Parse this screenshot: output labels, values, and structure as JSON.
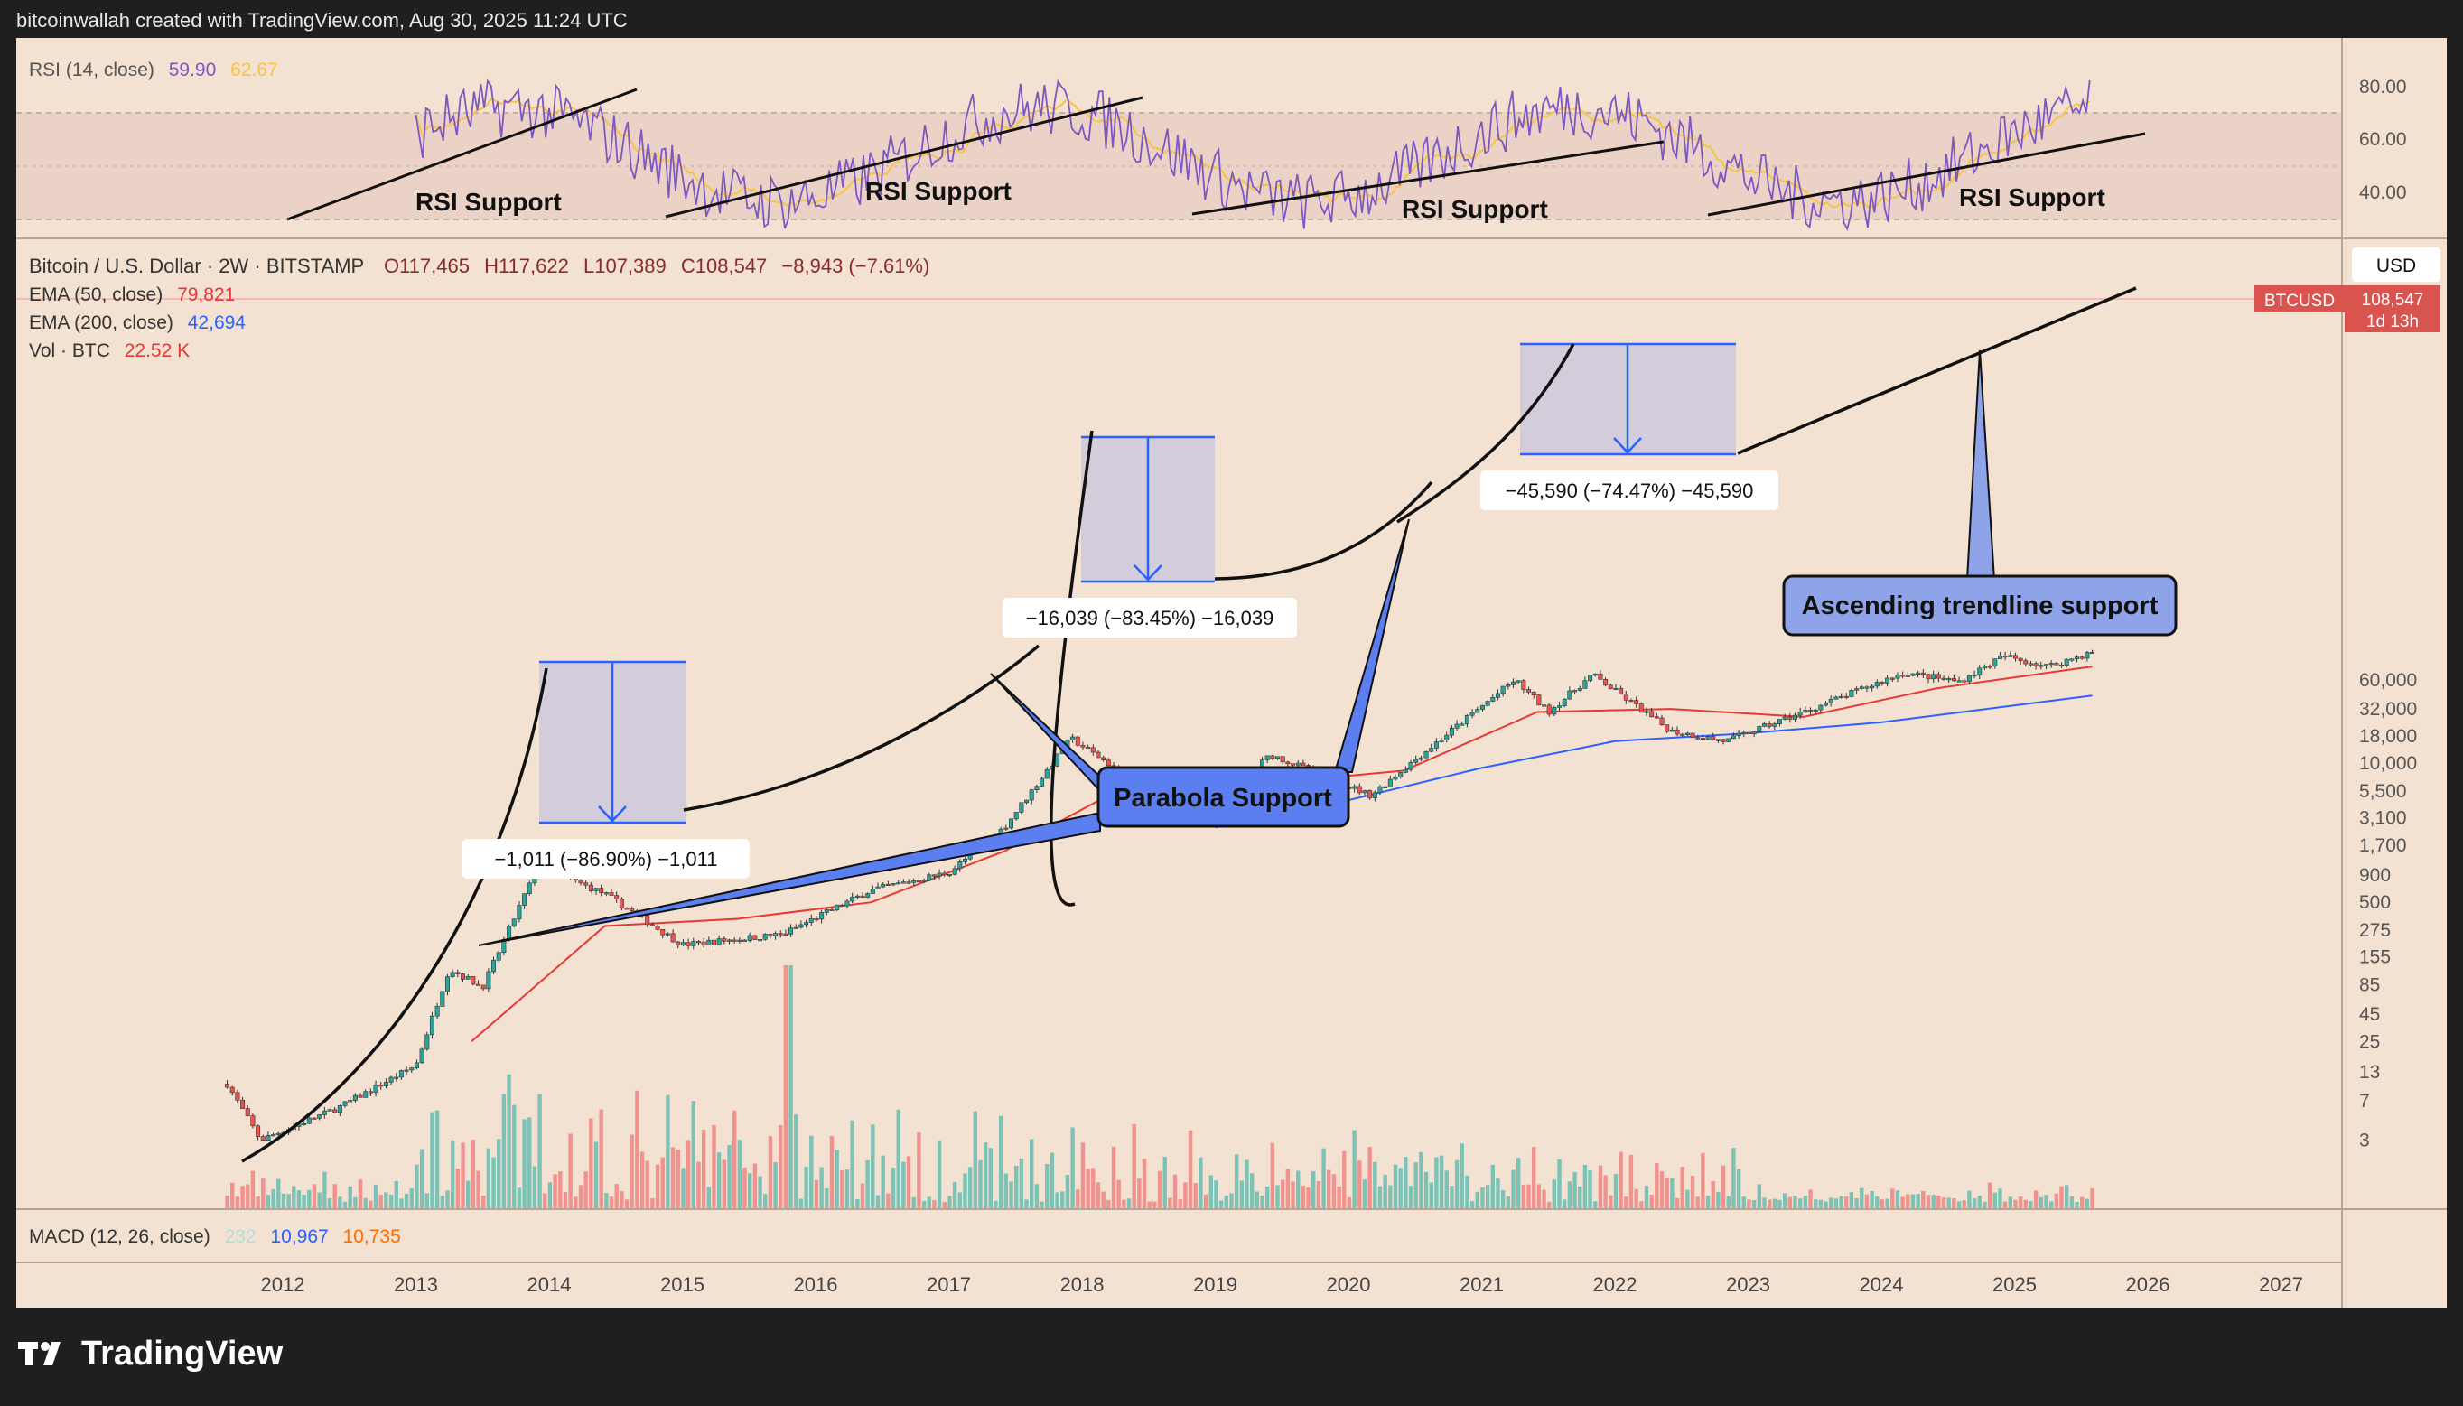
{
  "header": {
    "credit": "bitcoinwallah created with TradingView.com, Aug 30, 2025 11:24 UTC"
  },
  "brand": {
    "name": "TradingView"
  },
  "colors": {
    "panel_bg": "#f3e1d1",
    "outer_bg": "#1f1f1f",
    "up": "#26a69a",
    "down": "#ef5350",
    "rsi": "#7e57c2",
    "rsi_ma": "#f5c542",
    "ema50": "#e53935",
    "ema200": "#2962ff",
    "box": "#2962ff",
    "callout_fill": "#5b7ff0",
    "callout_fill_light": "#8fa4e8"
  },
  "rsi_panel": {
    "legend": {
      "name": "RSI (14, close)",
      "value1": "59.90",
      "value2": "62.67"
    },
    "y_ticks": [
      "80.00",
      "60.00",
      "40.00"
    ],
    "labels": [
      "RSI Support",
      "RSI Support",
      "RSI Support",
      "RSI Support"
    ]
  },
  "price_panel": {
    "legend": {
      "symbol": "Bitcoin / U.S. Dollar · 2W · BITSTAMP",
      "o": "O117,465",
      "h": "H117,622",
      "l": "L107,389",
      "c": "C108,547",
      "chg": "−8,943 (−7.61%)",
      "ema50_name": "EMA (50, close)",
      "ema50_value": "79,821",
      "ema200_name": "EMA (200, close)",
      "ema200_value": "42,694",
      "vol_name": "Vol · BTC",
      "vol_value": "22.52 K"
    },
    "currency": "USD",
    "price_tag": {
      "symbol": "BTCUSD",
      "price": "108,547",
      "countdown": "1d 13h"
    },
    "y_ticks": [
      "60,000",
      "32,000",
      "18,000",
      "10,000",
      "5,500",
      "3,100",
      "1,700",
      "900",
      "500",
      "275",
      "155",
      "85",
      "45",
      "25",
      "13",
      "7",
      "3"
    ],
    "drawdowns": [
      {
        "label": "−1,011 (−86.90%) −1,011"
      },
      {
        "label": "−16,039 (−83.45%) −16,039"
      },
      {
        "label": "−45,590 (−74.47%) −45,590"
      }
    ],
    "callouts": {
      "parabola": "Parabola Support",
      "trendline": "Ascending trendline support"
    }
  },
  "macd_panel": {
    "legend": {
      "name": "MACD (12, 26, close)",
      "v1": "232",
      "v2": "10,967",
      "v3": "10,735"
    }
  },
  "time_axis": [
    "2012",
    "2013",
    "2014",
    "2015",
    "2016",
    "2017",
    "2018",
    "2019",
    "2020",
    "2021",
    "2022",
    "2023",
    "2024",
    "2025",
    "2026",
    "2027"
  ],
  "chart_data": {
    "type": "candlestick",
    "title": "Bitcoin / U.S. Dollar · 2W · BITSTAMP",
    "yscale": "log",
    "ylabel": "USD",
    "approx_price_path": [
      {
        "x": "2011-08",
        "y": 10
      },
      {
        "x": "2011-11",
        "y": 3
      },
      {
        "x": "2012-06",
        "y": 6
      },
      {
        "x": "2013-01",
        "y": 15
      },
      {
        "x": "2013-04",
        "y": 120
      },
      {
        "x": "2013-07",
        "y": 80
      },
      {
        "x": "2013-12",
        "y": 1100
      },
      {
        "x": "2014-06",
        "y": 600
      },
      {
        "x": "2015-01",
        "y": 200
      },
      {
        "x": "2015-10",
        "y": 250
      },
      {
        "x": "2016-06",
        "y": 650
      },
      {
        "x": "2017-01",
        "y": 950
      },
      {
        "x": "2017-06",
        "y": 2500
      },
      {
        "x": "2017-12",
        "y": 17000
      },
      {
        "x": "2018-06",
        "y": 6500
      },
      {
        "x": "2018-12",
        "y": 3300
      },
      {
        "x": "2019-06",
        "y": 12000
      },
      {
        "x": "2020-03",
        "y": 5000
      },
      {
        "x": "2020-12",
        "y": 28000
      },
      {
        "x": "2021-04",
        "y": 60000
      },
      {
        "x": "2021-07",
        "y": 30000
      },
      {
        "x": "2021-11",
        "y": 67000
      },
      {
        "x": "2022-06",
        "y": 20000
      },
      {
        "x": "2022-11",
        "y": 16000
      },
      {
        "x": "2023-06",
        "y": 30000
      },
      {
        "x": "2024-03",
        "y": 70000
      },
      {
        "x": "2024-08",
        "y": 58000
      },
      {
        "x": "2024-12",
        "y": 100000
      },
      {
        "x": "2025-04",
        "y": 80000
      },
      {
        "x": "2025-08",
        "y": 108547
      }
    ],
    "ema50": [
      {
        "x": "2013-06",
        "y": 25
      },
      {
        "x": "2014-06",
        "y": 300
      },
      {
        "x": "2015-06",
        "y": 350
      },
      {
        "x": "2016-06",
        "y": 500
      },
      {
        "x": "2017-06",
        "y": 1500
      },
      {
        "x": "2018-06",
        "y": 7000
      },
      {
        "x": "2019-06",
        "y": 6500
      },
      {
        "x": "2020-06",
        "y": 8500
      },
      {
        "x": "2021-06",
        "y": 30000
      },
      {
        "x": "2022-06",
        "y": 32000
      },
      {
        "x": "2023-06",
        "y": 27000
      },
      {
        "x": "2024-06",
        "y": 50000
      },
      {
        "x": "2025-08",
        "y": 79821
      }
    ],
    "ema200": [
      {
        "x": "2019-01",
        "y": 2500
      },
      {
        "x": "2020-01",
        "y": 4500
      },
      {
        "x": "2021-01",
        "y": 9000
      },
      {
        "x": "2022-01",
        "y": 16000
      },
      {
        "x": "2023-01",
        "y": 19000
      },
      {
        "x": "2024-01",
        "y": 24000
      },
      {
        "x": "2025-08",
        "y": 42694
      }
    ],
    "drawdowns": [
      {
        "from_date": "2013-12",
        "to_date": "2015-01",
        "change": -1011,
        "change_pct": -86.9
      },
      {
        "from_date": "2017-12",
        "to_date": "2018-12",
        "change": -16039,
        "change_pct": -83.45
      },
      {
        "from_date": "2021-11",
        "to_date": "2022-11",
        "change": -45590,
        "change_pct": -74.47
      }
    ],
    "last": {
      "open": 117465,
      "high": 117622,
      "low": 107389,
      "close": 108547,
      "change": -8943,
      "change_pct": -7.61
    },
    "rsi": {
      "last": 59.9,
      "ma": 62.67,
      "range": [
        30,
        90
      ]
    },
    "macd": {
      "histogram": 232,
      "macd": 10967,
      "signal": 10735
    }
  }
}
